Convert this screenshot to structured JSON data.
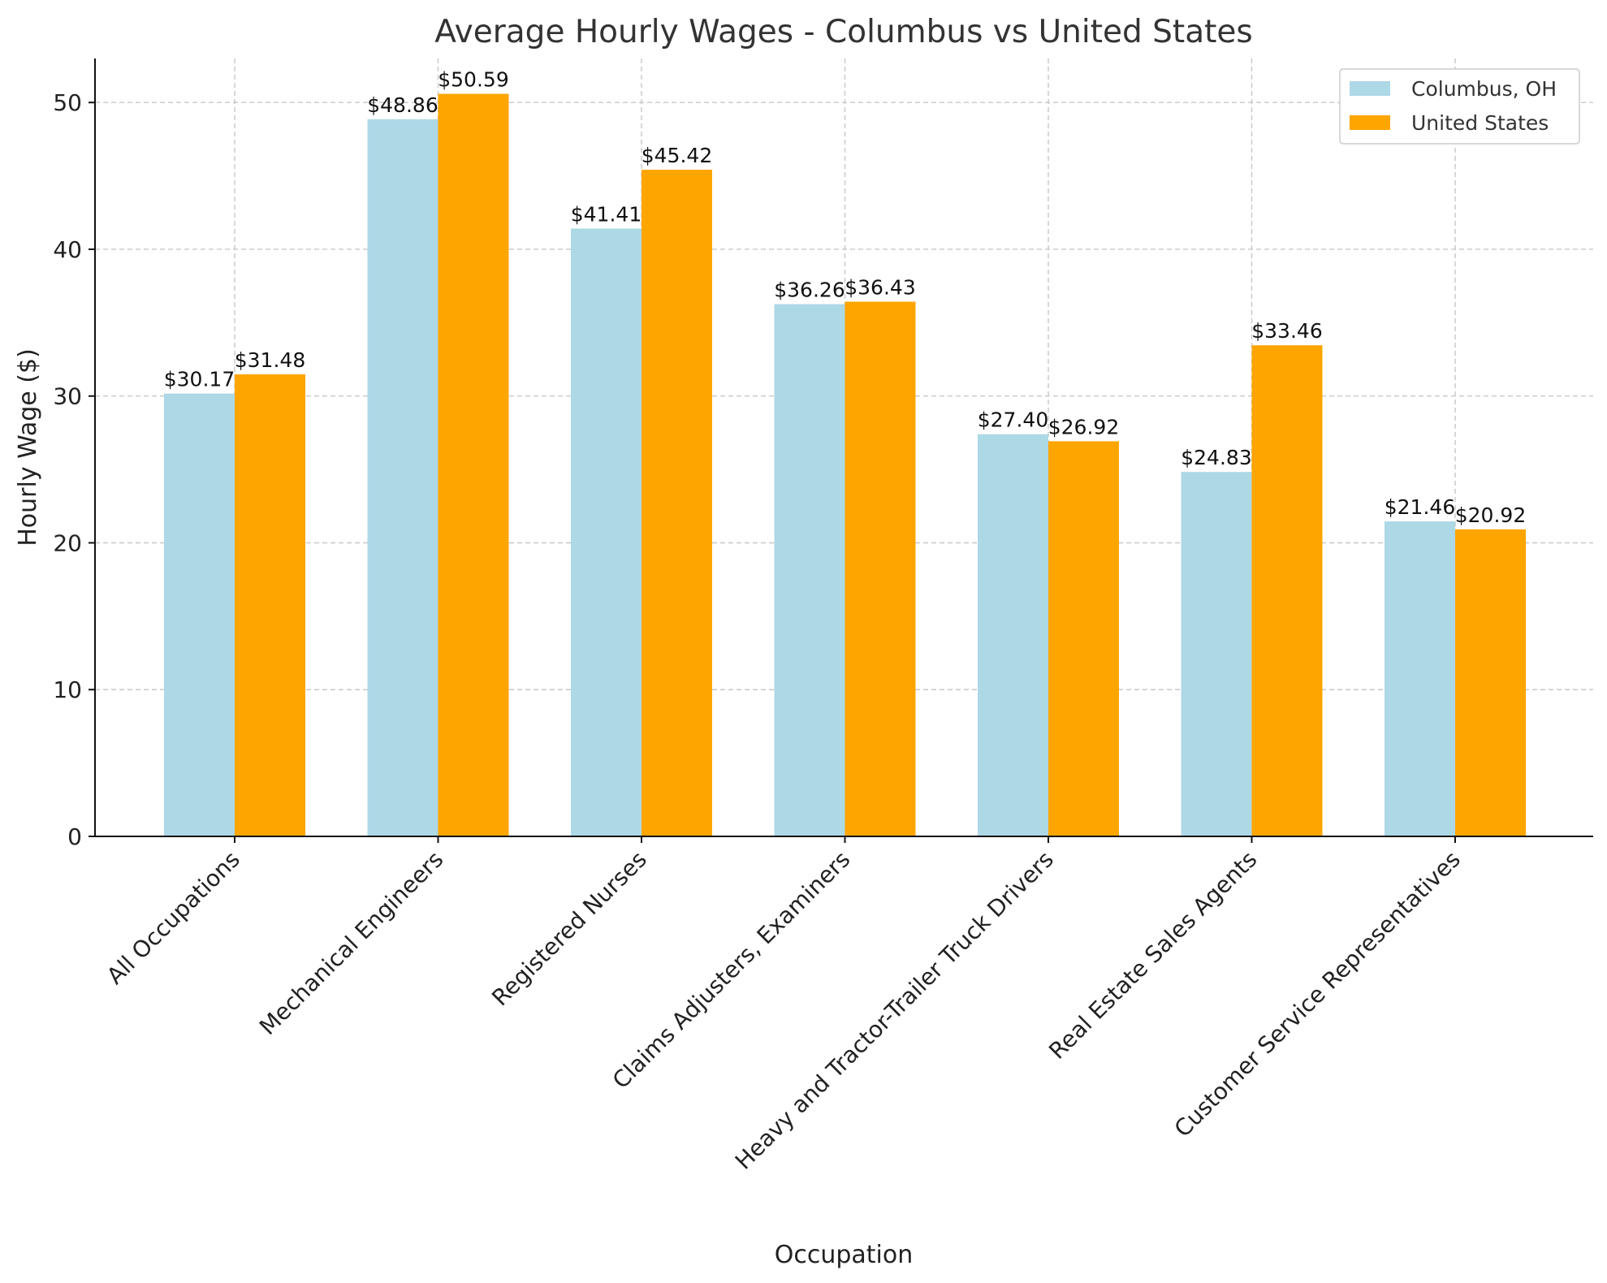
{
  "chart_data": {
    "type": "bar",
    "title": "Average Hourly Wages - Columbus vs United States",
    "xlabel": "Occupation",
    "ylabel": "Hourly Wage ($)",
    "ylim": [
      0,
      53
    ],
    "yticks": [
      0,
      10,
      20,
      30,
      40,
      50
    ],
    "grid": true,
    "legend_position": "top-right",
    "categories": [
      "All Occupations",
      "Mechanical Engineers",
      "Registered Nurses",
      "Claims Adjusters, Examiners",
      "Heavy and Tractor-Trailer Truck Drivers",
      "Real Estate Sales Agents",
      "Customer Service Representatives"
    ],
    "series": [
      {
        "name": "Columbus, OH",
        "color": "#add8e6",
        "values": [
          30.17,
          48.86,
          41.41,
          36.26,
          27.4,
          24.83,
          21.46
        ],
        "labels": [
          "$30.17",
          "$48.86",
          "$41.41",
          "$36.26",
          "$27.40",
          "$24.83",
          "$21.46"
        ]
      },
      {
        "name": "United States",
        "color": "#ffa500",
        "values": [
          31.48,
          50.59,
          45.42,
          36.43,
          26.92,
          33.46,
          20.92
        ],
        "labels": [
          "$31.48",
          "$50.59",
          "$45.42",
          "$36.43",
          "$26.92",
          "$33.46",
          "$20.92"
        ]
      }
    ]
  }
}
